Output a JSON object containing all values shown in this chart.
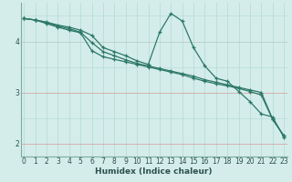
{
  "xlabel": "Humidex (Indice chaleur)",
  "background_color": "#d4edea",
  "grid_color_light": "#b8ddd8",
  "grid_color_red": "#d4a8a8",
  "line_color": "#2d7868",
  "x_ticks": [
    0,
    1,
    2,
    3,
    4,
    5,
    6,
    7,
    8,
    9,
    10,
    11,
    12,
    13,
    14,
    15,
    16,
    17,
    18,
    19,
    20,
    21,
    22,
    23
  ],
  "y_ticks": [
    2,
    3,
    4
  ],
  "ylim": [
    1.75,
    4.75
  ],
  "xlim": [
    -0.3,
    23.3
  ],
  "line1_x": [
    0,
    1,
    2,
    3,
    4,
    5,
    6,
    7,
    8,
    9,
    10,
    11,
    12,
    13,
    14,
    15,
    16,
    17,
    18,
    19,
    20,
    21,
    22,
    23
  ],
  "line1_y": [
    4.45,
    4.42,
    4.38,
    4.32,
    4.28,
    4.22,
    4.12,
    3.88,
    3.8,
    3.72,
    3.62,
    3.55,
    4.18,
    4.55,
    4.4,
    3.88,
    3.52,
    3.28,
    3.22,
    3.02,
    2.82,
    2.58,
    2.52,
    2.12
  ],
  "line2_x": [
    0,
    1,
    2,
    3,
    4,
    5,
    6,
    7,
    8,
    9,
    10,
    11,
    12,
    13,
    14,
    15,
    16,
    17,
    18,
    19,
    20,
    21,
    22,
    23
  ],
  "line2_y": [
    4.45,
    4.42,
    4.37,
    4.3,
    4.25,
    4.18,
    3.98,
    3.8,
    3.72,
    3.64,
    3.57,
    3.52,
    3.47,
    3.42,
    3.37,
    3.32,
    3.25,
    3.2,
    3.15,
    3.1,
    3.05,
    3.0,
    2.48,
    2.15
  ],
  "line3_x": [
    0,
    1,
    2,
    3,
    4,
    5,
    6,
    7,
    8,
    9,
    10,
    11,
    12,
    13,
    14,
    15,
    16,
    17,
    18,
    19,
    20,
    21,
    22,
    23
  ],
  "line3_y": [
    4.45,
    4.42,
    4.35,
    4.28,
    4.22,
    4.17,
    3.82,
    3.7,
    3.65,
    3.6,
    3.55,
    3.5,
    3.45,
    3.4,
    3.35,
    3.28,
    3.22,
    3.17,
    3.13,
    3.08,
    3.02,
    2.95,
    2.47,
    2.15
  ]
}
